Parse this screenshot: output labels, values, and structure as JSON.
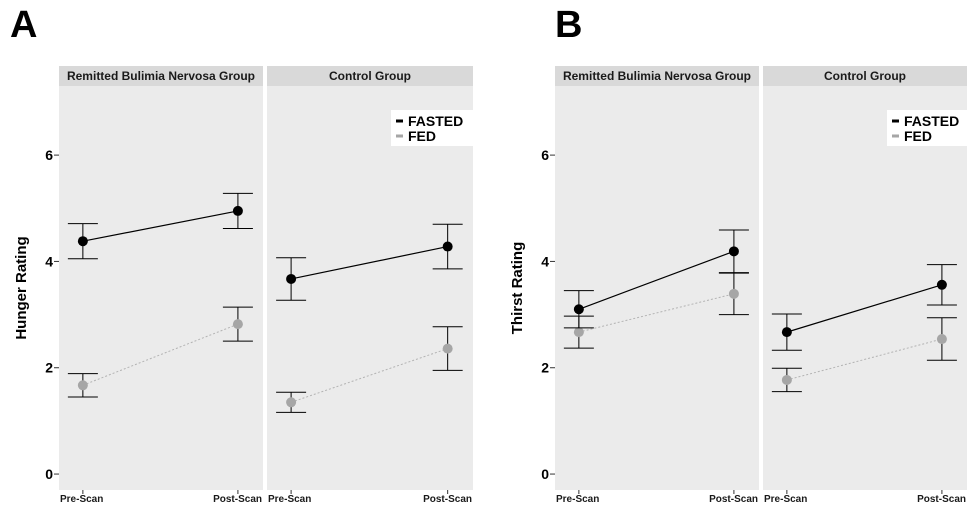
{
  "chart_data": [
    {
      "type": "line",
      "panel_label": "A",
      "ylabel": "Hunger Rating",
      "ylim": [
        -0.3,
        7.3
      ],
      "yticks": [
        "0",
        "2",
        "4",
        "6"
      ],
      "x": [
        "Pre-Scan",
        "Post-Scan"
      ],
      "legend": {
        "placement": "top-right of Control Group facet",
        "entries": [
          "FASTED",
          "FED"
        ]
      },
      "facets": [
        {
          "strip": "Remitted Bulimia Nervosa Group",
          "series": [
            {
              "name": "FASTED",
              "color": "#000000",
              "style": "solid",
              "values": [
                4.38,
                4.95
              ],
              "err_low": [
                4.05,
                4.62
              ],
              "err_high": [
                4.71,
                5.28
              ]
            },
            {
              "name": "FED",
              "color": "#a6a6a6",
              "style": "dotted",
              "values": [
                1.67,
                2.82
              ],
              "err_low": [
                1.45,
                2.5
              ],
              "err_high": [
                1.89,
                3.14
              ]
            }
          ]
        },
        {
          "strip": "Control Group",
          "series": [
            {
              "name": "FASTED",
              "color": "#000000",
              "style": "solid",
              "values": [
                3.67,
                4.28
              ],
              "err_low": [
                3.27,
                3.86
              ],
              "err_high": [
                4.07,
                4.7
              ]
            },
            {
              "name": "FED",
              "color": "#a6a6a6",
              "style": "dotted",
              "values": [
                1.35,
                2.36
              ],
              "err_low": [
                1.16,
                1.95
              ],
              "err_high": [
                1.54,
                2.77
              ]
            }
          ]
        }
      ]
    },
    {
      "type": "line",
      "panel_label": "B",
      "ylabel": "Thirst Rating",
      "ylim": [
        -0.3,
        7.3
      ],
      "yticks": [
        "0",
        "2",
        "4",
        "6"
      ],
      "x": [
        "Pre-Scan",
        "Post-Scan"
      ],
      "legend": {
        "placement": "top-right of Control Group facet",
        "entries": [
          "FASTED",
          "FED"
        ]
      },
      "facets": [
        {
          "strip": "Remitted Bulimia Nervosa Group",
          "series": [
            {
              "name": "FASTED",
              "color": "#000000",
              "style": "solid",
              "values": [
                3.1,
                4.19
              ],
              "err_low": [
                2.75,
                3.79
              ],
              "err_high": [
                3.45,
                4.59
              ]
            },
            {
              "name": "FED",
              "color": "#a6a6a6",
              "style": "dotted",
              "values": [
                2.67,
                3.39
              ],
              "err_low": [
                2.37,
                3.0
              ],
              "err_high": [
                2.97,
                3.78
              ]
            }
          ]
        },
        {
          "strip": "Control Group",
          "series": [
            {
              "name": "FASTED",
              "color": "#000000",
              "style": "solid",
              "values": [
                2.67,
                3.56
              ],
              "err_low": [
                2.33,
                3.18
              ],
              "err_high": [
                3.01,
                3.94
              ]
            },
            {
              "name": "FED",
              "color": "#a6a6a6",
              "style": "dotted",
              "values": [
                1.77,
                2.54
              ],
              "err_low": [
                1.55,
                2.14
              ],
              "err_high": [
                1.99,
                2.94
              ]
            }
          ]
        }
      ]
    }
  ]
}
